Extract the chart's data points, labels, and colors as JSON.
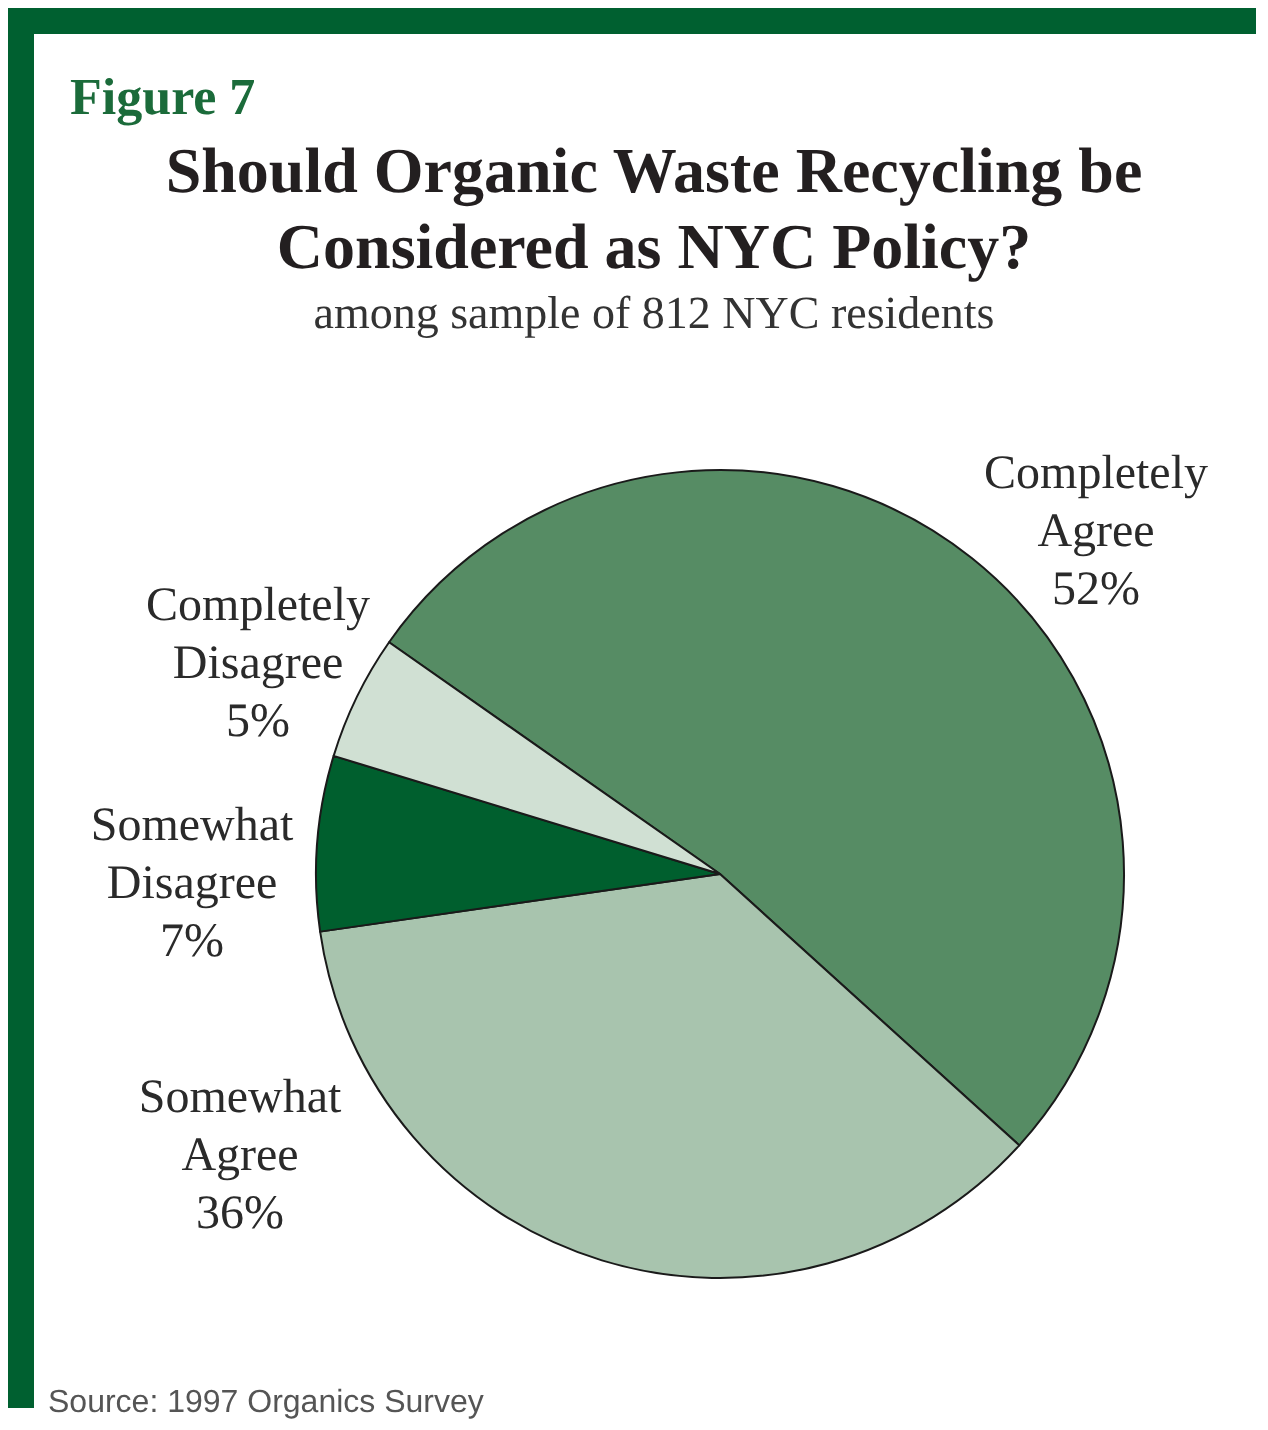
{
  "chart_data": {
    "type": "pie",
    "title": "Should Organic Waste Recycling be Considered as NYC Policy?",
    "subtitle": "among sample of 812 NYC residents",
    "annotations": [
      "Figure 7",
      "Source: 1997 Organics Survey"
    ],
    "categories": [
      "Completely Agree",
      "Somewhat Agree",
      "Somewhat Disagree",
      "Completely Disagree"
    ],
    "values": [
      52,
      36,
      7,
      5
    ],
    "value_labels": [
      "52%",
      "36%",
      "7%",
      "5%"
    ],
    "colors": [
      "#568c64",
      "#a8c4ae",
      "#005f2e",
      "#d0e0d3"
    ]
  }
}
